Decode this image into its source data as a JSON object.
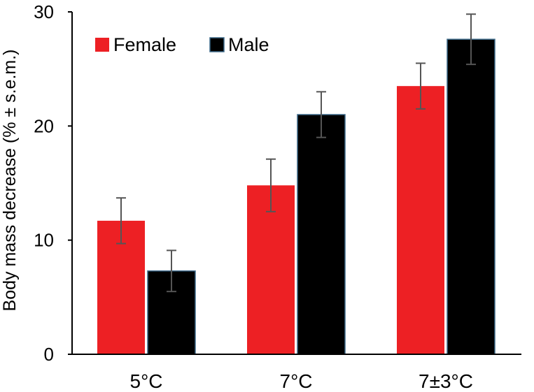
{
  "chart_data": {
    "type": "bar",
    "categories": [
      "5°C",
      "7°C",
      "7±3°C"
    ],
    "series": [
      {
        "name": "Female",
        "color": "#ed2024",
        "values": [
          11.7,
          14.8,
          23.5
        ],
        "errors": [
          2.0,
          2.3,
          2.0
        ]
      },
      {
        "name": "Male",
        "color": "#000000",
        "values": [
          7.3,
          21.0,
          27.6
        ],
        "errors": [
          1.8,
          2.0,
          2.2
        ]
      }
    ],
    "title": "",
    "xlabel": "",
    "ylabel": "Body mass decrease (% ± s.e.m.)",
    "ylim": [
      0,
      30
    ],
    "yticks": [
      0,
      10,
      20,
      30
    ],
    "grid": false,
    "legend_position": "top-left"
  }
}
